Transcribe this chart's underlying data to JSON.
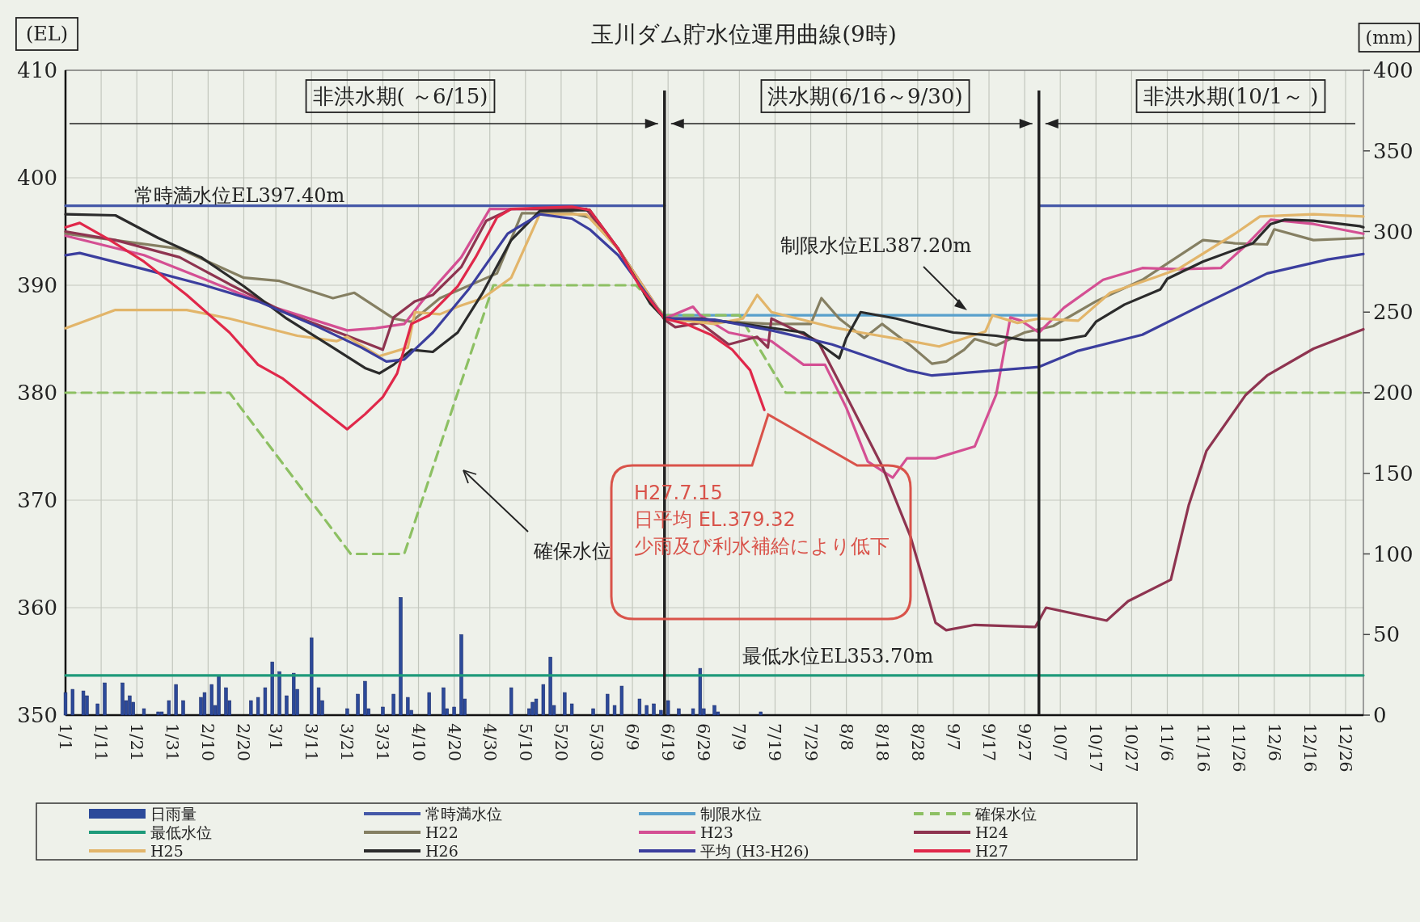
{
  "chart_data": {
    "type": "line",
    "title": "玉川ダム貯水位運用曲線(9時)",
    "ylabel": "(EL)",
    "y2label": "(mm)",
    "xlim": [
      "--01-01",
      "--12-31"
    ],
    "ylim": [
      350,
      410
    ],
    "y2lim": [
      0,
      400
    ],
    "xticks": [
      {
        "value": "--01-01",
        "label": "1/1"
      },
      {
        "value": "--01-11",
        "label": "1/11"
      },
      {
        "value": "--01-21",
        "label": "1/21"
      },
      {
        "value": "--01-31",
        "label": "1/31"
      },
      {
        "value": "--02-10",
        "label": "2/10"
      },
      {
        "value": "--02-20",
        "label": "2/20"
      },
      {
        "value": "--03-01",
        "label": "3/1"
      },
      {
        "value": "--03-11",
        "label": "3/11"
      },
      {
        "value": "--03-21",
        "label": "3/21"
      },
      {
        "value": "--03-31",
        "label": "3/31"
      },
      {
        "value": "--04-10",
        "label": "4/10"
      },
      {
        "value": "--04-20",
        "label": "4/20"
      },
      {
        "value": "--04-30",
        "label": "4/30"
      },
      {
        "value": "--05-10",
        "label": "5/10"
      },
      {
        "value": "--05-20",
        "label": "5/20"
      },
      {
        "value": "--05-30",
        "label": "5/30"
      },
      {
        "value": "--06-09",
        "label": "6/9"
      },
      {
        "value": "--06-19",
        "label": "6/19"
      },
      {
        "value": "--06-29",
        "label": "6/29"
      },
      {
        "value": "--07-09",
        "label": "7/9"
      },
      {
        "value": "--07-19",
        "label": "7/19"
      },
      {
        "value": "--07-29",
        "label": "7/29"
      },
      {
        "value": "--08-08",
        "label": "8/8"
      },
      {
        "value": "--08-18",
        "label": "8/18"
      },
      {
        "value": "--08-28",
        "label": "8/28"
      },
      {
        "value": "--09-07",
        "label": "9/7"
      },
      {
        "value": "--09-17",
        "label": "9/17"
      },
      {
        "value": "--09-27",
        "label": "9/27"
      },
      {
        "value": "--10-07",
        "label": "10/7"
      },
      {
        "value": "--10-17",
        "label": "10/17"
      },
      {
        "value": "--10-27",
        "label": "10/27"
      },
      {
        "value": "--11-06",
        "label": "11/6"
      },
      {
        "value": "--11-16",
        "label": "11/16"
      },
      {
        "value": "--11-26",
        "label": "11/26"
      },
      {
        "value": "--12-06",
        "label": "12/6"
      },
      {
        "value": "--12-16",
        "label": "12/16"
      },
      {
        "value": "--12-26",
        "label": "12/26"
      }
    ],
    "yticks": [
      350,
      360,
      370,
      380,
      390,
      400,
      410
    ],
    "y2ticks": [
      0,
      50,
      100,
      150,
      200,
      250,
      300,
      350,
      400
    ],
    "grid": true,
    "legend": "bottom",
    "ref_lines": [
      {
        "axis": "x",
        "value": "--06-18",
        "color": "#222222"
      },
      {
        "axis": "x",
        "value": "--10-01",
        "color": "#222222"
      }
    ],
    "annotations": [
      "非洪水期( ～6/15)",
      "洪水期(6/16～9/30)",
      "非洪水期(10/1～ )",
      "常時満水位EL397.40m",
      "制限水位EL387.20m",
      "確保水位",
      "最低水位EL353.70m",
      "H27.7.15\n日平均 EL.379.32\n少雨及び利水補給により低下"
    ],
    "series": [
      {
        "name": "日雨量",
        "type": "bar",
        "axis": "y2",
        "color": "#2c4a9a",
        "x": [
          "--01-01",
          "--01-03",
          "--01-06",
          "--01-07",
          "--01-10",
          "--01-12",
          "--01-17",
          "--01-18",
          "--01-19",
          "--01-20",
          "--01-23",
          "--01-27",
          "--01-28",
          "--01-30",
          "--02-01",
          "--02-03",
          "--02-08",
          "--02-09",
          "--02-11",
          "--02-12",
          "--02-13",
          "--02-15",
          "--02-16",
          "--02-22",
          "--02-24",
          "--02-26",
          "--02-28",
          "--03-02",
          "--03-04",
          "--03-06",
          "--03-07",
          "--03-11",
          "--03-13",
          "--03-14",
          "--03-21",
          "--03-24",
          "--03-26",
          "--03-27",
          "--03-31",
          "--04-03",
          "--04-05",
          "--04-07",
          "--04-08",
          "--04-13",
          "--04-17",
          "--04-18",
          "--04-20",
          "--04-22",
          "--04-23",
          "--05-06",
          "--05-11",
          "--05-12",
          "--05-13",
          "--05-15",
          "--05-17",
          "--05-18",
          "--05-21",
          "--05-23",
          "--05-29",
          "--06-02",
          "--06-04",
          "--06-06",
          "--06-11",
          "--06-13",
          "--06-15",
          "--06-17",
          "--06-19",
          "--06-22",
          "--06-26",
          "--06-28",
          "--06-29",
          "--07-02",
          "--07-03",
          "--07-15"
        ],
        "values": [
          14,
          16,
          15,
          12,
          7,
          20,
          20,
          9,
          12,
          8,
          4,
          2,
          2,
          9,
          19,
          9,
          11,
          14,
          19,
          6,
          24,
          17,
          9,
          9,
          11,
          17,
          33,
          27,
          12,
          26,
          16,
          48,
          17,
          9,
          4,
          13,
          21,
          4,
          5,
          13,
          73,
          11,
          3,
          14,
          17,
          4,
          5,
          50,
          10,
          17,
          4,
          8,
          10,
          19,
          36,
          6,
          14,
          7,
          4,
          13,
          6,
          18,
          10,
          6,
          7,
          3,
          9,
          4,
          4,
          29,
          4,
          6,
          2,
          2
        ]
      },
      {
        "name": "常時満水位",
        "color": "#4458a8",
        "x": [
          "--01-01",
          "--06-18"
        ],
        "values": [
          397.4,
          397.4
        ]
      },
      {
        "name": "制限水位",
        "color": "#58a0cc",
        "x": [
          "--06-18",
          "--10-01"
        ],
        "values": [
          387.2,
          387.2
        ]
      },
      {
        "name": "確保水位",
        "color": "#8dc063",
        "line_style": "dashed",
        "x": [
          "--01-01",
          "--02-16",
          "--03-22",
          "--04-06",
          "--05-01",
          "--06-10",
          "--06-18",
          "--07-09",
          "--07-22",
          "--12-31"
        ],
        "values": [
          380,
          380,
          365,
          365,
          390,
          390,
          387.2,
          387.2,
          380,
          380
        ]
      },
      {
        "name": "最低水位",
        "color": "#1e9a7a",
        "x": [
          "--01-01",
          "--12-31"
        ],
        "values": [
          353.7,
          353.7
        ]
      },
      {
        "name": "H22",
        "color": "#857f62",
        "x": [
          "--01-01",
          "--02-02",
          "--02-20",
          "--03-02",
          "--03-17",
          "--03-23",
          "--04-03",
          "--04-08",
          "--04-16",
          "--05-02",
          "--05-09",
          "--05-23",
          "--05-28",
          "--06-05",
          "--06-18",
          "--07-18",
          "--07-29",
          "--08-01",
          "--08-06",
          "--08-13",
          "--08-18",
          "--08-26",
          "--09-01",
          "--09-05",
          "--09-10",
          "--09-13",
          "--09-19",
          "--09-27",
          "--10-05",
          "--10-17",
          "--10-30",
          "--11-16",
          "--11-25",
          "--12-04",
          "--12-06",
          "--12-17",
          "--12-31"
        ],
        "values": [
          394.8,
          393.4,
          390.7,
          390.4,
          388.8,
          389.3,
          386.9,
          386.6,
          388.8,
          391.1,
          396.7,
          396.7,
          396.3,
          393.4,
          386.9,
          386.4,
          386.4,
          388.8,
          386.9,
          385.1,
          386.4,
          384.4,
          382.7,
          382.9,
          384.0,
          385.0,
          384.4,
          385.6,
          386.2,
          388.5,
          390.5,
          394.2,
          393.9,
          393.8,
          395.2,
          394.2,
          394.4
        ]
      },
      {
        "name": "H23",
        "color": "#d44f93",
        "x": [
          "--01-01",
          "--01-23",
          "--02-08",
          "--02-28",
          "--03-21",
          "--03-29",
          "--04-06",
          "--04-11",
          "--04-22",
          "--04-30",
          "--05-27",
          "--06-05",
          "--06-18",
          "--06-26",
          "--06-28",
          "--07-06",
          "--07-18",
          "--07-27",
          "--08-02",
          "--08-08",
          "--08-14",
          "--08-21",
          "--08-25",
          "--09-02",
          "--09-13",
          "--09-19",
          "--09-23",
          "--09-26",
          "--10-01",
          "--10-08",
          "--10-19",
          "--10-30",
          "--11-09",
          "--11-21",
          "--11-28",
          "--12-05",
          "--12-17",
          "--12-31"
        ],
        "values": [
          394.6,
          392.8,
          390.7,
          388.0,
          385.8,
          386.0,
          386.4,
          388.5,
          392.6,
          397.1,
          397.1,
          393.4,
          386.9,
          388.0,
          387.2,
          385.6,
          384.8,
          382.6,
          382.6,
          378.6,
          373.6,
          372.1,
          373.9,
          373.9,
          375.0,
          379.8,
          387.0,
          386.7,
          385.6,
          387.9,
          390.5,
          391.6,
          391.5,
          391.6,
          393.7,
          396.1,
          395.7,
          394.8
        ]
      },
      {
        "name": "H24",
        "color": "#8e3450",
        "x": [
          "--01-01",
          "--01-15",
          "--02-02",
          "--02-16",
          "--03-04",
          "--03-21",
          "--03-31",
          "--04-03",
          "--04-09",
          "--04-14",
          "--04-22",
          "--04-29",
          "--05-06",
          "--05-27",
          "--06-05",
          "--06-18",
          "--06-21",
          "--06-28",
          "--07-06",
          "--07-14",
          "--07-17",
          "--07-18",
          "--07-31",
          "--08-08",
          "--08-18",
          "--08-26",
          "--09-02",
          "--09-05",
          "--09-13",
          "--09-30",
          "--10-03",
          "--10-20",
          "--10-26",
          "--11-07",
          "--11-12",
          "--11-17",
          "--11-28",
          "--12-04",
          "--12-17",
          "--12-31"
        ],
        "values": [
          395.0,
          394.2,
          392.6,
          390.1,
          387.4,
          385.3,
          384.0,
          387.0,
          388.5,
          389.1,
          391.7,
          396.0,
          397.1,
          397.1,
          393.4,
          386.8,
          386.1,
          386.5,
          384.5,
          385.2,
          384.2,
          386.9,
          384.8,
          379.7,
          373.2,
          366.6,
          358.6,
          357.9,
          358.4,
          358.2,
          360.0,
          358.8,
          360.6,
          362.6,
          369.5,
          374.6,
          379.8,
          381.6,
          384.1,
          385.9
        ]
      },
      {
        "name": "H25",
        "color": "#e2b56a",
        "x": [
          "--01-01",
          "--01-15",
          "--02-04",
          "--02-16",
          "--03-07",
          "--03-18",
          "--03-21",
          "--03-30",
          "--04-07",
          "--04-09",
          "--04-16",
          "--04-21",
          "--04-28",
          "--05-06",
          "--05-14",
          "--05-27",
          "--06-05",
          "--06-18",
          "--07-02",
          "--07-10",
          "--07-14",
          "--07-18",
          "--08-04",
          "--08-12",
          "--08-26",
          "--09-03",
          "--09-16",
          "--09-18",
          "--09-25",
          "--10-01",
          "--10-12",
          "--10-21",
          "--11-03",
          "--11-09",
          "--11-25",
          "--12-02",
          "--12-17",
          "--12-31"
        ],
        "values": [
          386.0,
          387.7,
          387.7,
          386.9,
          385.3,
          384.8,
          385.2,
          383.4,
          384.2,
          387.5,
          387.3,
          388.0,
          388.8,
          390.7,
          396.6,
          396.6,
          393.4,
          386.9,
          386.4,
          386.9,
          389.1,
          387.5,
          386.1,
          385.6,
          384.8,
          384.3,
          385.7,
          387.2,
          386.5,
          386.9,
          386.7,
          389.3,
          390.8,
          391.5,
          394.8,
          396.4,
          396.6,
          396.4
        ]
      },
      {
        "name": "H26",
        "color": "#2b2b2b",
        "x": [
          "--01-01",
          "--01-15",
          "--01-27",
          "--02-08",
          "--02-20",
          "--03-04",
          "--03-17",
          "--03-26",
          "--03-30",
          "--04-03",
          "--04-08",
          "--04-14",
          "--04-21",
          "--04-28",
          "--05-06",
          "--05-14",
          "--05-28",
          "--06-05",
          "--06-14",
          "--06-18",
          "--06-28",
          "--07-10",
          "--07-27",
          "--08-06",
          "--08-08",
          "--08-12",
          "--08-22",
          "--08-29",
          "--09-07",
          "--09-19",
          "--09-27",
          "--10-07",
          "--10-14",
          "--10-17",
          "--10-25",
          "--11-04",
          "--11-06",
          "--11-16",
          "--11-30",
          "--12-05",
          "--12-09",
          "--12-17",
          "--12-30",
          "--12-31"
        ],
        "values": [
          396.6,
          396.5,
          394.4,
          392.6,
          389.9,
          386.9,
          384.2,
          382.3,
          381.8,
          382.6,
          384.0,
          383.8,
          385.6,
          389.3,
          394.2,
          396.9,
          397.0,
          393.4,
          388.3,
          386.9,
          386.9,
          386.4,
          385.6,
          383.2,
          385.1,
          387.5,
          386.9,
          386.3,
          385.6,
          385.3,
          384.9,
          384.9,
          385.3,
          386.6,
          388.2,
          389.6,
          390.6,
          392.2,
          393.9,
          395.7,
          396.1,
          396.0,
          395.5,
          395.4
        ]
      },
      {
        "name": "平均 (H3-H26)",
        "color": "#3b3e9e",
        "x": [
          "--01-01",
          "--01-05",
          "--01-23",
          "--02-08",
          "--02-24",
          "--03-13",
          "--03-25",
          "--04-01",
          "--04-06",
          "--04-14",
          "--04-24",
          "--05-05",
          "--05-14",
          "--05-23",
          "--05-28",
          "--06-05",
          "--06-18",
          "--07-02",
          "--07-18",
          "--08-04",
          "--08-25",
          "--09-01",
          "--09-16",
          "--10-01",
          "--10-12",
          "--10-30",
          "--11-16",
          "--12-04",
          "--12-21",
          "--12-31"
        ],
        "values": [
          392.8,
          393.0,
          391.5,
          390.1,
          388.5,
          386.1,
          384.2,
          382.9,
          383.1,
          385.6,
          389.6,
          394.8,
          396.6,
          396.2,
          395.2,
          392.8,
          386.9,
          386.8,
          385.8,
          384.5,
          382.1,
          381.6,
          382.0,
          382.4,
          383.9,
          385.4,
          388.2,
          391.1,
          392.4,
          392.9
        ]
      },
      {
        "name": "H27",
        "color": "#e0284a",
        "x": [
          "--01-01",
          "--01-05",
          "--01-13",
          "--01-23",
          "--02-04",
          "--02-16",
          "--02-24",
          "--03-03",
          "--03-11",
          "--03-21",
          "--03-26",
          "--03-31",
          "--04-04",
          "--04-08",
          "--04-13",
          "--04-21",
          "--04-26",
          "--05-02",
          "--05-06",
          "--05-23",
          "--05-28",
          "--06-05",
          "--06-11",
          "--06-18",
          "--06-24",
          "--07-01",
          "--07-07",
          "--07-12",
          "--07-16"
        ],
        "values": [
          395.4,
          395.8,
          394.3,
          392.2,
          389.1,
          385.6,
          382.6,
          381.3,
          379.2,
          376.6,
          378.0,
          379.6,
          381.8,
          386.4,
          387.2,
          389.9,
          392.6,
          396.3,
          397.1,
          397.3,
          397.0,
          393.4,
          389.9,
          386.9,
          386.4,
          385.4,
          384.0,
          382.1,
          378.4
        ]
      },
      {
        "color": "#4458a8",
        "x": [
          "--10-01",
          "--12-31"
        ],
        "values": [
          397.4,
          397.4
        ]
      }
    ]
  }
}
